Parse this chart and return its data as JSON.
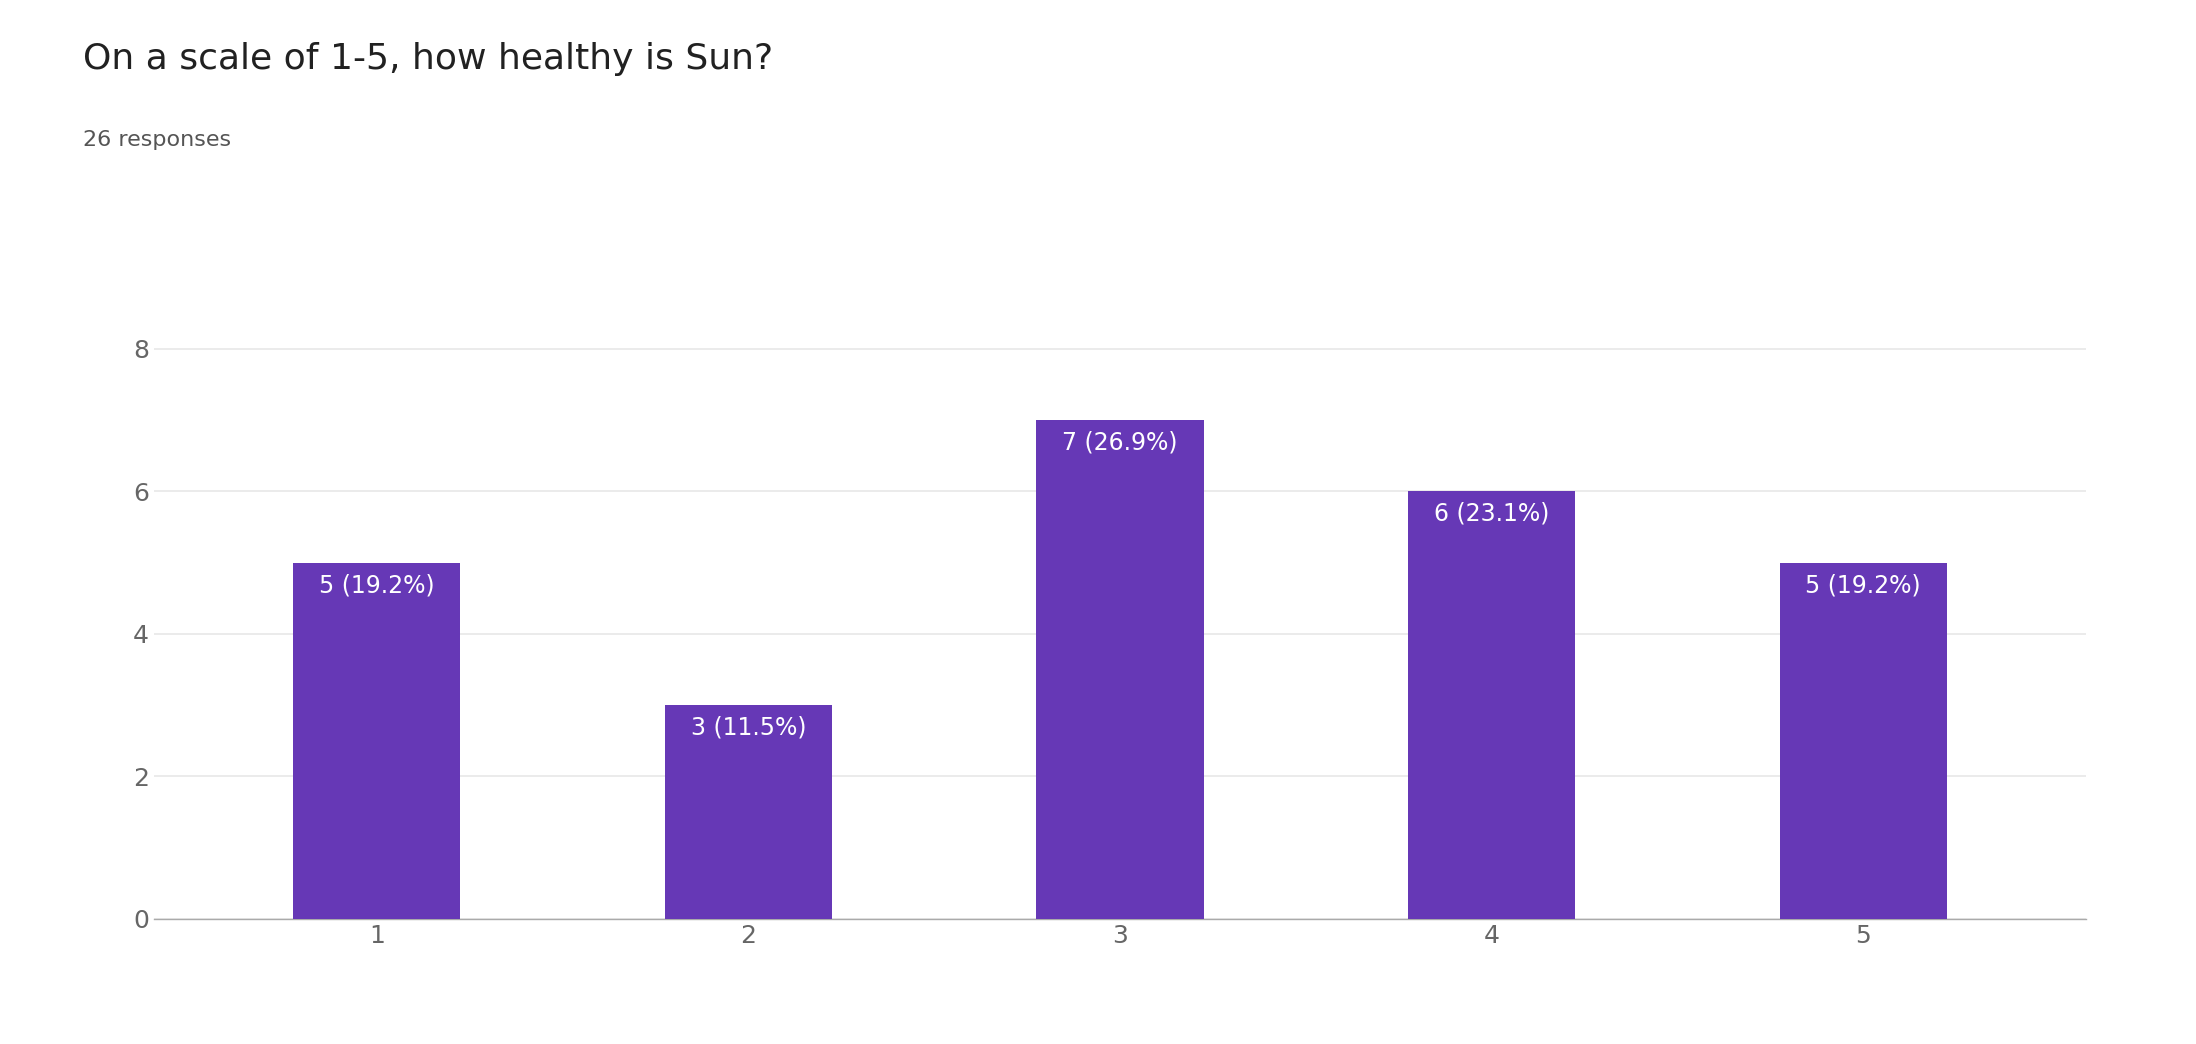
{
  "title": "On a scale of 1-5, how healthy is Sun?",
  "subtitle": "26 responses",
  "categories": [
    1,
    2,
    3,
    4,
    5
  ],
  "values": [
    5,
    3,
    7,
    6,
    5
  ],
  "labels": [
    "5 (19.2%)",
    "3 (11.5%)",
    "7 (26.9%)",
    "6 (23.1%)",
    "5 (19.2%)"
  ],
  "bar_color": "#6638b6",
  "background_color": "#ffffff",
  "grid_color": "#e8e8e8",
  "text_color_title": "#212121",
  "text_color_subtitle": "#555555",
  "label_color": "#ffffff",
  "ylim": [
    0,
    8.5
  ],
  "yticks": [
    0,
    2,
    4,
    6,
    8
  ],
  "title_fontsize": 26,
  "subtitle_fontsize": 16,
  "tick_fontsize": 18,
  "label_fontsize": 17,
  "bar_width": 0.45
}
